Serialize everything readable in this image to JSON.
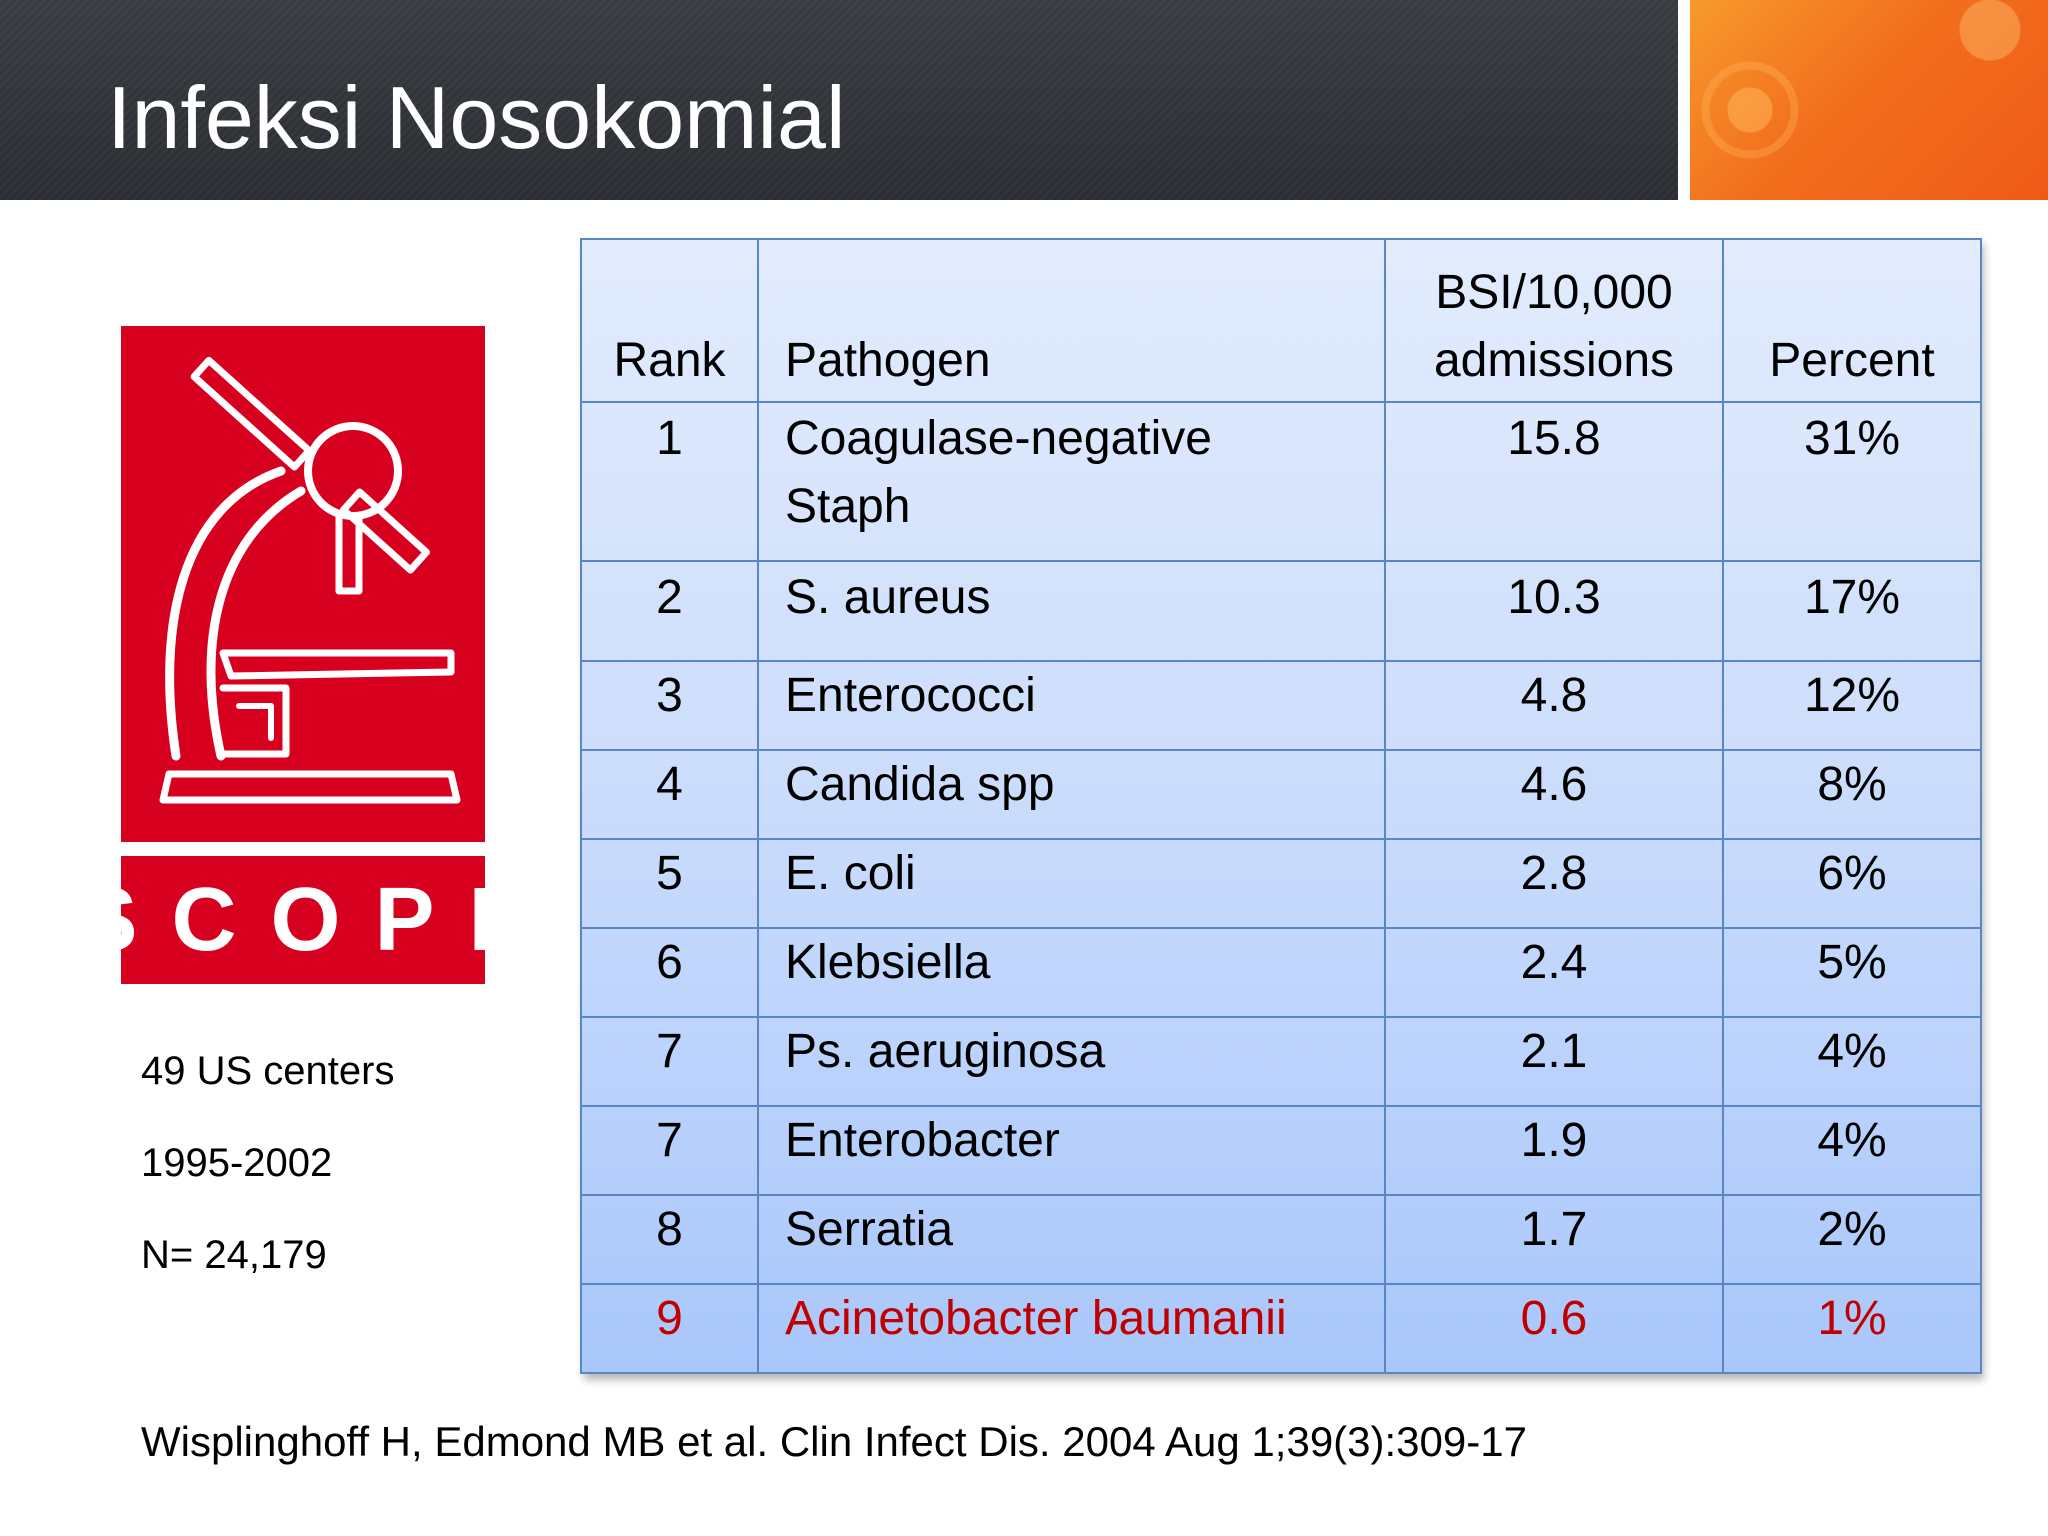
{
  "slide": {
    "title": "Infeksi Nosokomial"
  },
  "logo": {
    "text": "SCOPE",
    "colors": {
      "red": "#d8001f",
      "white": "#ffffff"
    }
  },
  "info": {
    "centers": "49 US centers",
    "years": "1995-2002",
    "n": "N= 24,179"
  },
  "citation": "Wisplinghoff H, Edmond MB et al. Clin Infect Dis. 2004 Aug 1;39(3):309-17",
  "table": {
    "headers": {
      "rank": "Rank",
      "pathogen": "Pathogen",
      "bsi_line1": "BSI/10,000",
      "bsi_line2": "admissions",
      "percent": "Percent"
    },
    "rows": [
      {
        "rank": "1",
        "pathogen_line1": "Coagulase-negative",
        "pathogen_line2": "Staph",
        "bsi": "15.8",
        "percent": "31%"
      },
      {
        "rank": "2",
        "pathogen": "S. aureus",
        "bsi": "10.3",
        "percent": "17%"
      },
      {
        "rank": "3",
        "pathogen": "Enterococci",
        "bsi": "4.8",
        "percent": "12%"
      },
      {
        "rank": "4",
        "pathogen": "Candida spp",
        "bsi": "4.6",
        "percent": "8%"
      },
      {
        "rank": "5",
        "pathogen": "E. coli",
        "bsi": "2.8",
        "percent": "6%"
      },
      {
        "rank": "6",
        "pathogen": "Klebsiella",
        "bsi": "2.4",
        "percent": "5%"
      },
      {
        "rank": "7",
        "pathogen": "Ps. aeruginosa",
        "bsi": "2.1",
        "percent": "4%"
      },
      {
        "rank": "7",
        "pathogen": "Enterobacter",
        "bsi": "1.9",
        "percent": "4%"
      },
      {
        "rank": "8",
        "pathogen": "Serratia",
        "bsi": "1.7",
        "percent": "2%"
      },
      {
        "rank": "9",
        "pathogen": "Acinetobacter baumanii",
        "bsi": "0.6",
        "percent": "1%"
      }
    ],
    "highlight_color": "#c00000"
  }
}
